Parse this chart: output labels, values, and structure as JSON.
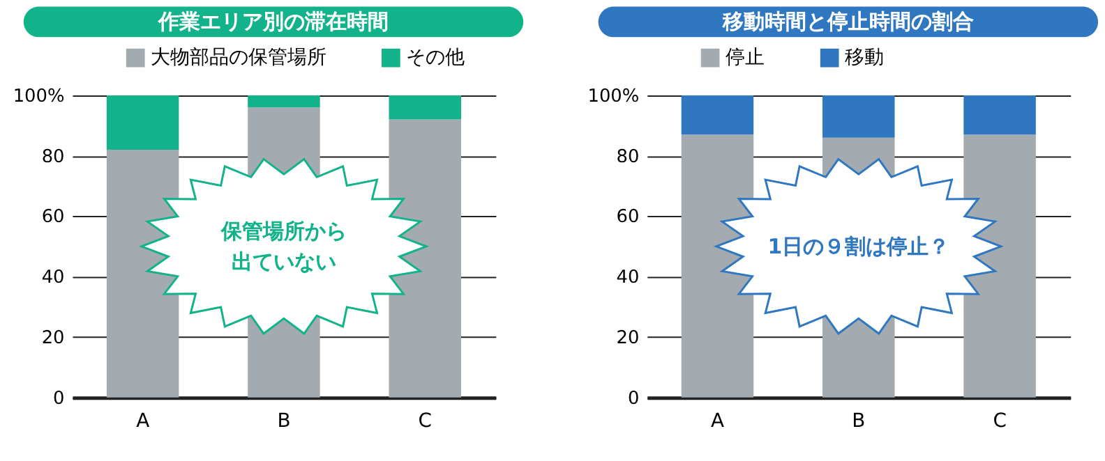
{
  "chart_data": [
    {
      "type": "bar",
      "stacked": true,
      "title": "作業エリア別の滞在時間",
      "categories": [
        "A",
        "B",
        "C"
      ],
      "series": [
        {
          "name": "大物部品の保管場所",
          "color": "#a4abb0",
          "values": [
            82,
            96,
            92
          ]
        },
        {
          "name": "その他",
          "color": "#12b28a",
          "values": [
            18,
            4,
            8
          ]
        }
      ],
      "ylim": [
        0,
        100
      ],
      "yticks": [
        0,
        20,
        40,
        60,
        80,
        {
          "value": 100,
          "label": "100%"
        }
      ],
      "grid": "y",
      "legend": "top",
      "annotations": [
        "保管場所から",
        "出ていない"
      ]
    },
    {
      "type": "bar",
      "stacked": true,
      "title": "移動時間と停止時間の割合",
      "categories": [
        "A",
        "B",
        "C"
      ],
      "series": [
        {
          "name": "停止",
          "color": "#a4abb0",
          "values": [
            87,
            86,
            87
          ]
        },
        {
          "name": "移動",
          "color": "#2f77c0",
          "values": [
            13,
            14,
            13
          ]
        }
      ],
      "ylim": [
        0,
        100
      ],
      "yticks": [
        0,
        20,
        40,
        60,
        80,
        {
          "value": 100,
          "label": "100%"
        }
      ],
      "grid": "y",
      "legend": "top",
      "annotations": [
        "1日の９割は停止？"
      ]
    }
  ]
}
